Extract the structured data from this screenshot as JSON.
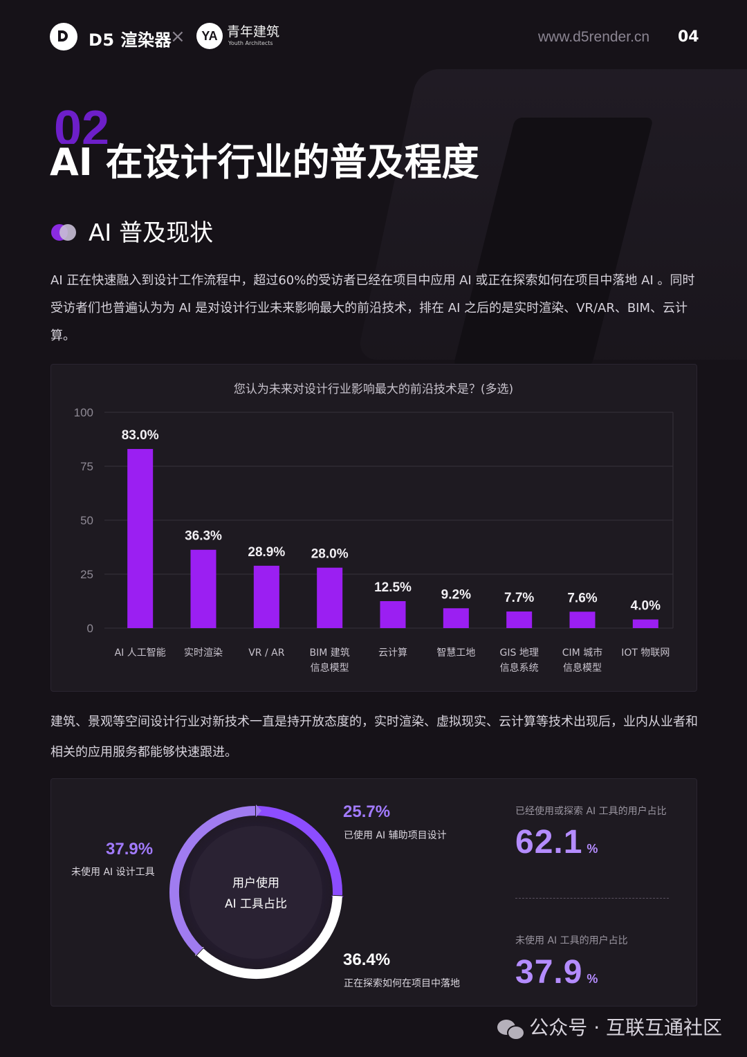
{
  "header": {
    "brand_text": "D5 渲染器",
    "cross": "×",
    "partner_mark": "YA",
    "partner_name": "青年建筑",
    "partner_sub": "Youth Architects",
    "url": "www.d5render.cn",
    "page_number": "04"
  },
  "section": {
    "number": "02",
    "title": "AI 在设计行业的普及程度",
    "subtitle": "AI 普及现状"
  },
  "paragraphs": {
    "intro": "AI 正在快速融入到设计工作流程中，超过60%的受访者已经在项目中应用 AI 或正在探索如何在项目中落地 AI 。同时受访者们也普遍认为为 AI 是对设计行业未来影响最大的前沿技术，排在 AI 之后的是实时渲染、VR/AR、BIM、云计算。",
    "followup": "建筑、景观等空间设计行业对新技术一直是持开放态度的，实时渲染、虚拟现实、云计算等技术出现后，业内从业者和相关的应用服务都能够快速跟进。"
  },
  "chart_data": [
    {
      "type": "bar",
      "title": "您认为未来对设计行业影响最大的前沿技术是？(多选)",
      "categories": [
        [
          "AI 人工智能"
        ],
        [
          "实时渲染"
        ],
        [
          "VR / AR"
        ],
        [
          "BIM 建筑",
          "信息模型"
        ],
        [
          "云计算"
        ],
        [
          "智慧工地"
        ],
        [
          "GIS 地理",
          "信息系统"
        ],
        [
          "CIM 城市",
          "信息模型"
        ],
        [
          "IOT 物联网"
        ]
      ],
      "values": [
        83.0,
        36.3,
        28.9,
        28.0,
        12.5,
        9.2,
        7.7,
        7.6,
        4.0
      ],
      "value_labels": [
        "83.0%",
        "36.3%",
        "28.9%",
        "28.0%",
        "12.5%",
        "9.2%",
        "7.7%",
        "7.6%",
        "4.0%"
      ],
      "yticks": [
        0,
        25,
        50,
        75,
        100
      ],
      "ylim": [
        0,
        100
      ],
      "grid": true,
      "bar_color": "#9b1ff2"
    },
    {
      "type": "pie",
      "center_label": [
        "用户使用",
        "AI 工具占比"
      ],
      "slices": [
        {
          "name": "已使用 AI 辅助项目设计",
          "value": 25.7,
          "label": "25.7%",
          "color": "#8c4dff"
        },
        {
          "name": "正在探索如何在项目中落地",
          "value": 36.4,
          "label": "36.4%",
          "color": "#ffffff"
        },
        {
          "name": "未使用 AI 设计工具",
          "value": 37.9,
          "label": "37.9%",
          "color": "#a07cf0"
        }
      ]
    }
  ],
  "donut_labels": {
    "used_pct": "25.7%",
    "used_label": "已使用 AI 辅助项目设计",
    "exploring_pct": "36.4%",
    "exploring_label": "正在探索如何在项目中落地",
    "not_used_pct": "37.9%",
    "not_used_label": "未使用 AI 设计工具"
  },
  "stats": {
    "used_label": "已经使用或探索 AI 工具的用户占比",
    "used_value": "62.1",
    "not_used_label": "未使用 AI 工具的用户占比",
    "not_used_value": "37.9",
    "unit": "%",
    "accent": "#b48cff"
  },
  "footer": {
    "text": "公众号 · 互联互通社区"
  },
  "colors": {
    "background": "#161218",
    "accent_purple": "#9b1ff2",
    "panel": "#1e1a21"
  }
}
